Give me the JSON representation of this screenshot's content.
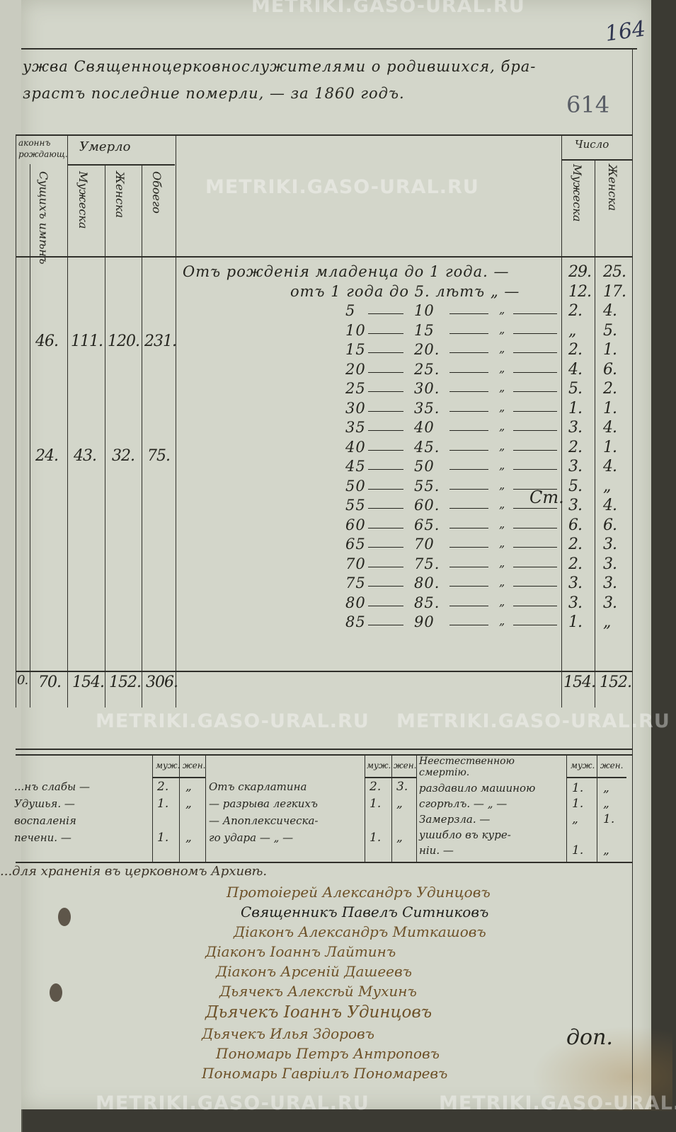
{
  "page_number": "164",
  "archive_number": "614",
  "header": {
    "line1": "ужва Священноцерковнослужителями о родившихся, бра-",
    "line2": "зрастъ последние померли, — за 1860 годъ."
  },
  "table1": {
    "col_group_left": "аконнъ рождающ.",
    "col_group_died": "Умерло",
    "col_vert_1": "Сущихъ имѣнъ",
    "col_vert_male": "Мужеска",
    "col_vert_female": "Женска",
    "col_vert_both": "Обоего",
    "col_group_number": "Число",
    "col_number_male": "Мужеска",
    "col_number_female": "Женска",
    "left_row1": [
      "46.",
      "111.",
      "120.",
      "231."
    ],
    "left_row2": [
      "24.",
      "43.",
      "32.",
      "75."
    ],
    "totals_left": [
      "0.",
      "70.",
      "154.",
      "152.",
      "306."
    ],
    "totals_right": [
      "154.",
      "152."
    ],
    "correction_note": "Ст.",
    "age_rows": [
      {
        "label": "Отъ рожденія младенца до 1 года. —",
        "male": "29.",
        "female": "25."
      },
      {
        "label": "отъ 1 года до 5. лѣтъ „ —",
        "male": "12.",
        "female": "17."
      },
      {
        "from": "5",
        "to": "10",
        "male": "2.",
        "female": "4."
      },
      {
        "from": "10",
        "to": "15",
        "male": "„",
        "female": "5."
      },
      {
        "from": "15",
        "to": "20.",
        "male": "2.",
        "female": "1."
      },
      {
        "from": "20",
        "to": "25.",
        "male": "4.",
        "female": "6."
      },
      {
        "from": "25",
        "to": "30.",
        "male": "5.",
        "female": "2."
      },
      {
        "from": "30",
        "to": "35.",
        "male": "1.",
        "female": "1."
      },
      {
        "from": "35",
        "to": "40",
        "male": "3.",
        "female": "4."
      },
      {
        "from": "40",
        "to": "45.",
        "male": "2.",
        "female": "1."
      },
      {
        "from": "45",
        "to": "50",
        "male": "3.",
        "female": "4."
      },
      {
        "from": "50",
        "to": "55.",
        "male": "5.",
        "female": "„"
      },
      {
        "from": "55",
        "to": "60.",
        "male": "3.",
        "female": "4."
      },
      {
        "from": "60",
        "to": "65.",
        "male": "6.",
        "female": "6."
      },
      {
        "from": "65",
        "to": "70",
        "male": "2.",
        "female": "3."
      },
      {
        "from": "70",
        "to": "75.",
        "male": "2.",
        "female": "3."
      },
      {
        "from": "75",
        "to": "80.",
        "male": "3.",
        "female": "3."
      },
      {
        "from": "80",
        "to": "85.",
        "male": "3.",
        "female": "3."
      },
      {
        "from": "85",
        "to": "90",
        "male": "1.",
        "female": "„"
      }
    ]
  },
  "table2": {
    "head_male": "муж.",
    "head_female": "жен.",
    "unnatural_heading": "Неестественною смертію.",
    "col1": [
      {
        "label": "...нъ слабы —",
        "male": "2.",
        "female": "„"
      },
      {
        "label": "Удушья. —",
        "male": "1.",
        "female": "„"
      },
      {
        "label": "воспаленія",
        "male": "",
        "female": ""
      },
      {
        "label": "печени. —",
        "male": "1.",
        "female": "„"
      }
    ],
    "col2": [
      {
        "label": "Отъ скарлатина",
        "male": "2.",
        "female": "3."
      },
      {
        "label": "— разрыва легкихъ",
        "male": "1.",
        "female": "„"
      },
      {
        "label": "— Апоплексическа-",
        "male": "",
        "female": ""
      },
      {
        "label": "го удара — „ —",
        "male": "1.",
        "female": "„"
      }
    ],
    "col3": [
      {
        "label": "раздавило машиною",
        "male": "1.",
        "female": "„"
      },
      {
        "label": "сгорѣлъ. — „ —",
        "male": "1.",
        "female": "„"
      },
      {
        "label": "Замерзла. —",
        "male": "„",
        "female": "1."
      },
      {
        "label": "ушибло въ куре-",
        "male": "",
        "female": ""
      },
      {
        "label": "ніи. —",
        "male": "1.",
        "female": "„"
      }
    ]
  },
  "footer_note": "...для храненія въ церковномъ Архивѣ.",
  "signatures": [
    "Протоіерей Александръ Удинцовъ",
    "Священникъ Павелъ Ситниковъ",
    "Діаконъ Александръ Миткашовъ",
    "Діаконъ Іоаннъ Лайтинъ",
    "Діаконъ Арсеній Дашеевъ",
    "Дьячекъ Алексѣй Мухинъ",
    "Дьячекъ Іоаннъ Удинцовъ",
    "Дьячекъ Илья Здоровъ",
    "Пономарь Петръ Антроповъ",
    "Пономарь Гавріилъ Пономаревъ"
  ],
  "stamp_note": "доп.",
  "watermark": "METRIKI.GASO-URAL.RU",
  "colors": {
    "paper": "#d3d6ca",
    "ink": "#25251f",
    "signature_ink": "#6d5128",
    "background": "#3b3a33"
  }
}
